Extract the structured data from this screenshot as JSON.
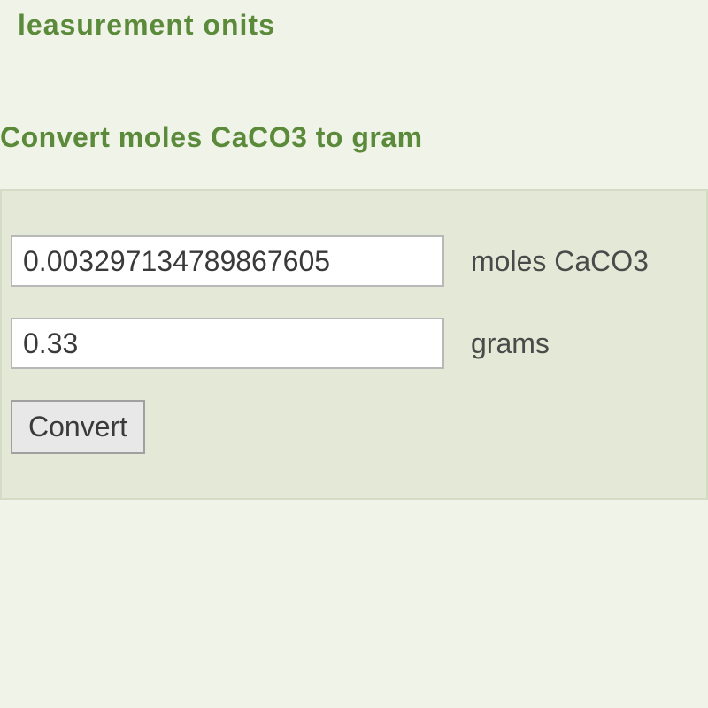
{
  "header": {
    "fragment": "leasurement onits"
  },
  "converter": {
    "title": "Convert moles CaCO3 to gram",
    "input1": {
      "value": "0.003297134789867605",
      "unit_label": "moles CaCO3"
    },
    "input2": {
      "value": "0.33",
      "unit_label": "grams"
    },
    "button_label": "Convert"
  },
  "colors": {
    "heading": "#5a8a3a",
    "page_bg": "#f0f4e8",
    "panel_bg": "#e3e9d6",
    "text": "#4a4a4a"
  }
}
